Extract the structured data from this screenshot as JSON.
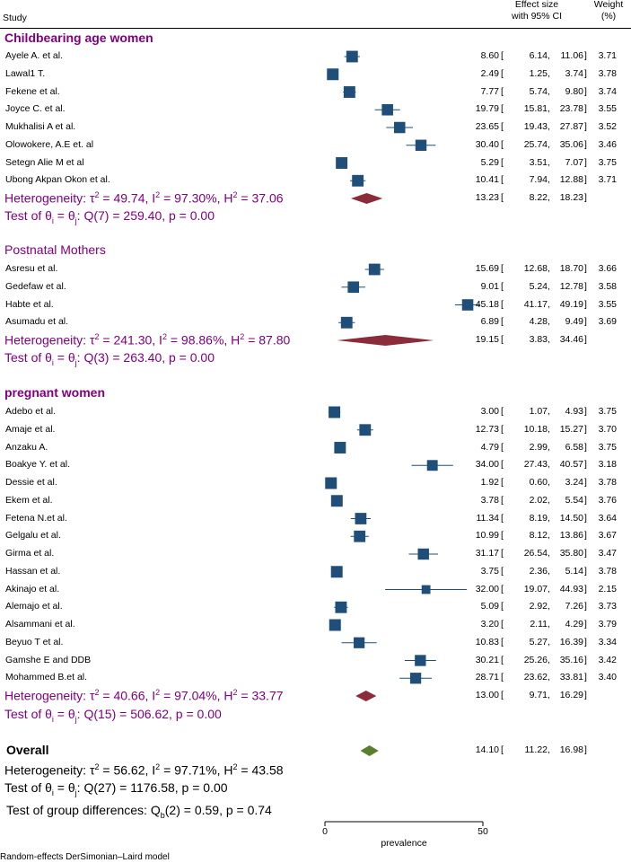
{
  "header": {
    "study_label": "Study",
    "effect_label_1": "Effect size",
    "effect_label_2": "with 95% CI",
    "weight_label_1": "Weight",
    "weight_label_2": "(%)"
  },
  "colors": {
    "group_heading": "#800080",
    "heterogeneity_text": "#800080",
    "study_marker": "#1f4e79",
    "subgroup_diamond": "#8b2c3a",
    "overall_diamond": "#5a7f2c",
    "ci_line": "#1f4e79"
  },
  "chart_data": {
    "type": "forest",
    "xlabel": "prevalence",
    "xlim": [
      0,
      50
    ],
    "xticks": [
      0,
      50
    ],
    "groups": [
      {
        "name": "Childbearing age women",
        "bold": true,
        "studies": [
          {
            "study": "Ayele A. et al.",
            "es": 8.6,
            "lo": 6.14,
            "hi": 11.06,
            "weight": 3.71,
            "es_text": "8.60",
            "lo_text": "6.14",
            "hi_text": "11.06",
            "weight_text": "3.71"
          },
          {
            "study": "Lawal1 T.",
            "es": 2.49,
            "lo": 1.25,
            "hi": 3.74,
            "weight": 3.78,
            "es_text": "2.49",
            "lo_text": "1.25",
            "hi_text": "3.74",
            "weight_text": "3.78"
          },
          {
            "study": "Fekene et al.",
            "es": 7.77,
            "lo": 5.74,
            "hi": 9.8,
            "weight": 3.74,
            "es_text": "7.77",
            "lo_text": "5.74",
            "hi_text": "9.80",
            "weight_text": "3.74"
          },
          {
            "study": "Joyce C. et al.",
            "es": 19.79,
            "lo": 15.81,
            "hi": 23.78,
            "weight": 3.55,
            "es_text": "19.79",
            "lo_text": "15.81",
            "hi_text": "23.78",
            "weight_text": "3.55"
          },
          {
            "study": "Mukhalisi A et al.",
            "es": 23.65,
            "lo": 19.43,
            "hi": 27.87,
            "weight": 3.52,
            "es_text": "23.65",
            "lo_text": "19.43",
            "hi_text": "27.87",
            "weight_text": "3.52"
          },
          {
            "study": "Olowokere, A.E et. al",
            "es": 30.4,
            "lo": 25.74,
            "hi": 35.06,
            "weight": 3.46,
            "es_text": "30.40",
            "lo_text": "25.74",
            "hi_text": "35.06",
            "weight_text": "3.46"
          },
          {
            "study": "Setegn Alie M et al",
            "es": 5.29,
            "lo": 3.51,
            "hi": 7.07,
            "weight": 3.75,
            "es_text": "5.29",
            "lo_text": "3.51",
            "hi_text": "7.07",
            "weight_text": "3.75"
          },
          {
            "study": "Ubong Akpan Okon et al.",
            "es": 10.41,
            "lo": 7.94,
            "hi": 12.88,
            "weight": 3.71,
            "es_text": "10.41",
            "lo_text": "7.94",
            "hi_text": "12.88",
            "weight_text": "3.71"
          }
        ],
        "pooled": {
          "es": 13.23,
          "lo": 8.22,
          "hi": 18.23,
          "es_text": "13.23",
          "lo_text": "8.22",
          "hi_text": "18.23"
        },
        "heterogeneity": {
          "prefix": "Heterogeneity: ",
          "tau2": "49.74",
          "I2": "97.30%",
          "H2": "37.06"
        },
        "test": {
          "Q_df": "7",
          "Q": "259.40",
          "p": "0.00"
        }
      },
      {
        "name": "Postnatal  Mothers",
        "bold": false,
        "studies": [
          {
            "study": "Asresu et al.",
            "es": 15.69,
            "lo": 12.68,
            "hi": 18.7,
            "weight": 3.66,
            "es_text": "15.69",
            "lo_text": "12.68",
            "hi_text": "18.70",
            "weight_text": "3.66"
          },
          {
            "study": "Gedefaw et al.",
            "es": 9.01,
            "lo": 5.24,
            "hi": 12.78,
            "weight": 3.58,
            "es_text": "9.01",
            "lo_text": "5.24",
            "hi_text": "12.78",
            "weight_text": "3.58"
          },
          {
            "study": "Habte et al.",
            "es": 45.18,
            "lo": 41.17,
            "hi": 49.19,
            "weight": 3.55,
            "es_text": "45.18",
            "lo_text": "41.17",
            "hi_text": "49.19",
            "weight_text": "3.55"
          },
          {
            "study": "Asumadu et al.",
            "es": 6.89,
            "lo": 4.28,
            "hi": 9.49,
            "weight": 3.69,
            "es_text": "6.89",
            "lo_text": "4.28",
            "hi_text": "9.49",
            "weight_text": "3.69"
          }
        ],
        "pooled": {
          "es": 19.15,
          "lo": 3.83,
          "hi": 34.46,
          "es_text": "19.15",
          "lo_text": "3.83",
          "hi_text": "34.46"
        },
        "heterogeneity": {
          "prefix": "Heterogeneity: ",
          "tau2": "241.30",
          "I2": "98.86%",
          "H2": "87.80"
        },
        "test": {
          "Q_df": "3",
          "Q": "263.40",
          "p": "0.00"
        }
      },
      {
        "name": "pregnant women",
        "bold": true,
        "studies": [
          {
            "study": "Adebo et al.",
            "es": 3.0,
            "lo": 1.07,
            "hi": 4.93,
            "weight": 3.75,
            "es_text": "3.00",
            "lo_text": "1.07",
            "hi_text": "4.93",
            "weight_text": "3.75"
          },
          {
            "study": "Amaje et al.",
            "es": 12.73,
            "lo": 10.18,
            "hi": 15.27,
            "weight": 3.7,
            "es_text": "12.73",
            "lo_text": "10.18",
            "hi_text": "15.27",
            "weight_text": "3.70"
          },
          {
            "study": "Anzaku A.",
            "es": 4.79,
            "lo": 2.99,
            "hi": 6.58,
            "weight": 3.75,
            "es_text": "4.79",
            "lo_text": "2.99",
            "hi_text": "6.58",
            "weight_text": "3.75"
          },
          {
            "study": "Boakye Y. et al.",
            "es": 34.0,
            "lo": 27.43,
            "hi": 40.57,
            "weight": 3.18,
            "es_text": "34.00",
            "lo_text": "27.43",
            "hi_text": "40.57",
            "weight_text": "3.18"
          },
          {
            "study": "Dessie et al.",
            "es": 1.92,
            "lo": 0.6,
            "hi": 3.24,
            "weight": 3.78,
            "es_text": "1.92",
            "lo_text": "0.60",
            "hi_text": "3.24",
            "weight_text": "3.78"
          },
          {
            "study": "Ekem et al.",
            "es": 3.78,
            "lo": 2.02,
            "hi": 5.54,
            "weight": 3.76,
            "es_text": "3.78",
            "lo_text": "2.02",
            "hi_text": "5.54",
            "weight_text": "3.76"
          },
          {
            "study": "Fetena N.et al.",
            "es": 11.34,
            "lo": 8.19,
            "hi": 14.5,
            "weight": 3.64,
            "es_text": "11.34",
            "lo_text": "8.19",
            "hi_text": "14.50",
            "weight_text": "3.64"
          },
          {
            "study": "Gelgalu et al.",
            "es": 10.99,
            "lo": 8.12,
            "hi": 13.86,
            "weight": 3.67,
            "es_text": "10.99",
            "lo_text": "8.12",
            "hi_text": "13.86",
            "weight_text": "3.67"
          },
          {
            "study": "Girma et al.",
            "es": 31.17,
            "lo": 26.54,
            "hi": 35.8,
            "weight": 3.47,
            "es_text": "31.17",
            "lo_text": "26.54",
            "hi_text": "35.80",
            "weight_text": "3.47"
          },
          {
            "study": "Hassan et al.",
            "es": 3.75,
            "lo": 2.36,
            "hi": 5.14,
            "weight": 3.78,
            "es_text": "3.75",
            "lo_text": "2.36",
            "hi_text": "5.14",
            "weight_text": "3.78"
          },
          {
            "study": "Akinajo et al.",
            "es": 32.0,
            "lo": 19.07,
            "hi": 44.93,
            "weight": 2.15,
            "es_text": "32.00",
            "lo_text": "19.07",
            "hi_text": "44.93",
            "weight_text": "2.15"
          },
          {
            "study": "Alemajo et al.",
            "es": 5.09,
            "lo": 2.92,
            "hi": 7.26,
            "weight": 3.73,
            "es_text": "5.09",
            "lo_text": "2.92",
            "hi_text": "7.26",
            "weight_text": "3.73"
          },
          {
            "study": "Alsammani et al.",
            "es": 3.2,
            "lo": 2.11,
            "hi": 4.29,
            "weight": 3.79,
            "es_text": "3.20",
            "lo_text": "2.11",
            "hi_text": "4.29",
            "weight_text": "3.79"
          },
          {
            "study": "Beyuo T et al.",
            "es": 10.83,
            "lo": 5.27,
            "hi": 16.39,
            "weight": 3.34,
            "es_text": "10.83",
            "lo_text": "5.27",
            "hi_text": "16.39",
            "weight_text": "3.34"
          },
          {
            "study": "Gamshe E and DDB",
            "es": 30.21,
            "lo": 25.26,
            "hi": 35.16,
            "weight": 3.42,
            "es_text": "30.21",
            "lo_text": "25.26",
            "hi_text": "35.16",
            "weight_text": "3.42"
          },
          {
            "study": "Mohammed B.et al.",
            "es": 28.71,
            "lo": 23.62,
            "hi": 33.81,
            "weight": 3.4,
            "es_text": "28.71",
            "lo_text": "23.62",
            "hi_text": "33.81",
            "weight_text": "3.40"
          }
        ],
        "pooled": {
          "es": 13.0,
          "lo": 9.71,
          "hi": 16.29,
          "es_text": "13.00",
          "lo_text": "9.71",
          "hi_text": "16.29"
        },
        "heterogeneity": {
          "prefix": "Heterogeneity: ",
          "tau2": "40.66",
          "I2": "97.04%",
          "H2": "33.77"
        },
        "test": {
          "Q_df": "15",
          "Q": "506.62",
          "p": "0.00"
        }
      }
    ],
    "overall": {
      "label": "Overall",
      "es": 14.1,
      "lo": 11.22,
      "hi": 16.98,
      "es_text": "14.10",
      "lo_text": "11.22",
      "hi_text": "16.98",
      "heterogeneity": {
        "prefix": "Heterogeneity: ",
        "tau2": "56.62",
        "I2": "97.71%",
        "H2": "43.58"
      },
      "test": {
        "Q_df": "27",
        "Q": "1176.58",
        "p": "0.00"
      }
    },
    "group_difference": {
      "df": "2",
      "Q": "0.59",
      "p": "0.74"
    },
    "footnote": "Random-effects DerSimonian–Laird model"
  }
}
